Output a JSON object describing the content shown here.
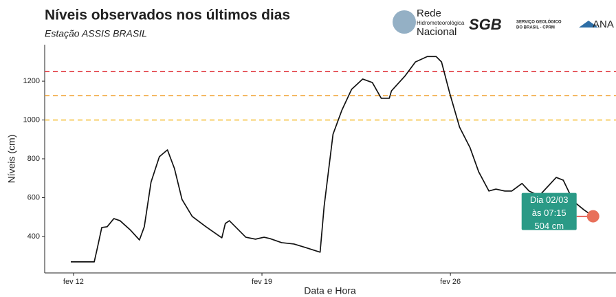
{
  "chart_data": {
    "type": "line",
    "title": "Níveis observados nos últimos dias",
    "subtitle": "Estação ASSIS BRASIL",
    "x_label": "Data e Hora",
    "y_label": "Níveis (cm)",
    "logos": [
      "Rede",
      "Hidrometeorológica",
      "Nacional",
      "SGB",
      "SERVIÇO GEOLÓGICO",
      "DO BRASIL - CPRM",
      "ANA"
    ],
    "xlim": [
      10.93,
      32.15
    ],
    "ylim": [
      212,
      1388
    ],
    "xticks": [
      {
        "value": 12,
        "label": "fev 12"
      },
      {
        "value": 19,
        "label": "fev 19"
      },
      {
        "value": 26,
        "label": "fev 26"
      }
    ],
    "yticks": [
      400,
      600,
      800,
      1000,
      1200
    ],
    "grid": false,
    "thresholds": [
      {
        "value": 1250,
        "color": "#e0353b"
      },
      {
        "value": 1125,
        "color": "#ef9a1f"
      },
      {
        "value": 1000,
        "color": "#f5c242"
      }
    ],
    "series": [
      {
        "color": "#111111",
        "x": [
          11.9,
          12.77,
          12.89,
          13.05,
          13.25,
          13.5,
          13.73,
          14.12,
          14.45,
          14.63,
          14.88,
          15.19,
          15.49,
          15.75,
          16.03,
          16.41,
          16.92,
          17.51,
          17.64,
          17.79,
          18.07,
          18.4,
          18.76,
          19.08,
          19.3,
          19.73,
          20.19,
          20.62,
          21.16,
          21.31,
          21.64,
          21.97,
          22.33,
          22.74,
          23.1,
          23.43,
          23.73,
          23.81,
          24.32,
          24.7,
          25.14,
          25.47,
          25.67,
          25.97,
          26.34,
          26.73,
          27.05,
          27.43,
          27.69,
          28.02,
          28.28,
          28.66,
          28.92,
          29.3,
          29.93,
          30.19,
          30.57,
          30.95,
          31.3
        ],
        "values": [
          269,
          269,
          343,
          446,
          450,
          492,
          481,
          432,
          382,
          450,
          680,
          811,
          846,
          750,
          591,
          503,
          450,
          393,
          467,
          481,
          442,
          396,
          386,
          396,
          389,
          368,
          361,
          343,
          319,
          556,
          927,
          1051,
          1158,
          1211,
          1193,
          1112,
          1112,
          1150,
          1228,
          1299,
          1327,
          1327,
          1299,
          1140,
          963,
          857,
          733,
          634,
          644,
          634,
          634,
          673,
          634,
          610,
          704,
          690,
          581,
          538,
          504
        ]
      }
    ],
    "annotation": {
      "lines": [
        "Dia 02/03",
        "às 07:15",
        "504 cm"
      ],
      "color": "#2a9a86",
      "marker_color": "#e8705a"
    }
  }
}
